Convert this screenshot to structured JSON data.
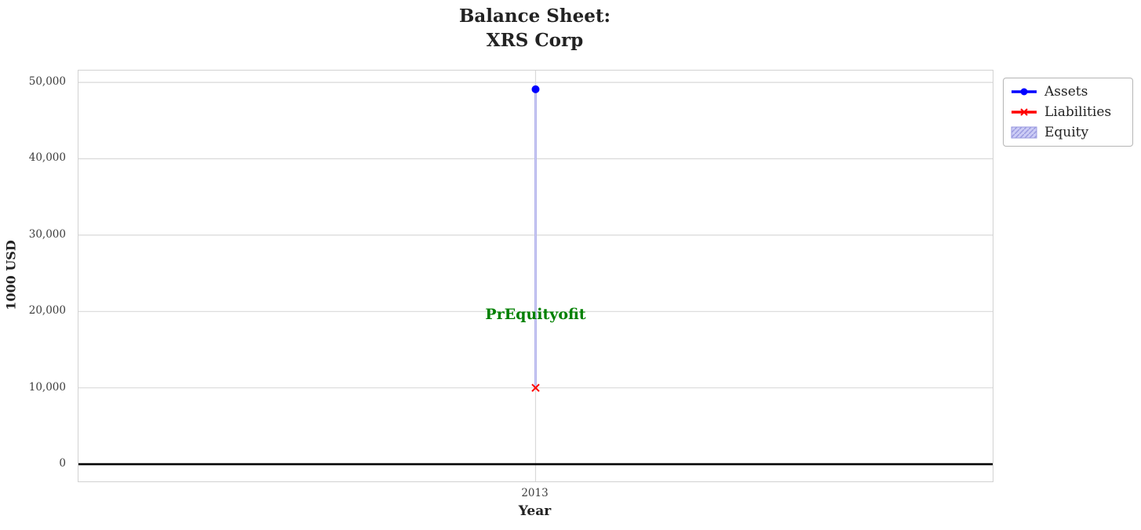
{
  "figure": {
    "title_line1": "Balance Sheet:",
    "title_line2": "XRS Corp",
    "xlabel": "Year",
    "ylabel": "1000 USD"
  },
  "legend": {
    "items": [
      {
        "label": "Assets"
      },
      {
        "label": "Liabilities"
      },
      {
        "label": "Equity"
      }
    ]
  },
  "chart_data": {
    "type": "line",
    "title": "Balance Sheet: XRS Corp",
    "xlabel": "Year",
    "ylabel": "1000 USD",
    "x": [
      2013
    ],
    "xtick_labels": [
      "2013"
    ],
    "yticks": [
      0,
      10000,
      20000,
      30000,
      40000,
      50000
    ],
    "ytick_labels": [
      "0",
      "10,000",
      "20,000",
      "30,000",
      "40,000",
      "50,000"
    ],
    "ylim": [
      -2250,
      51550
    ],
    "grid": true,
    "grid_color": "#d9d9d9",
    "legend_position": "outside-upper-right",
    "series": [
      {
        "name": "Assets",
        "type": "line",
        "marker": "circle",
        "color": "#0000ff",
        "values": [
          49100
        ]
      },
      {
        "name": "Liabilities",
        "type": "line",
        "marker": "x",
        "color": "#ff0000",
        "values": [
          10000
        ]
      },
      {
        "name": "Equity",
        "type": "bar",
        "hatch": "//",
        "fill": "#ccccf5",
        "edge": "#9a9ae0",
        "bottom": [
          10000
        ],
        "values": [
          39100
        ]
      }
    ],
    "zero_line": {
      "color": "#000000",
      "width": 2.6
    },
    "annotations": [
      {
        "text": "PrEquityofit",
        "x": 2013,
        "y": 19600,
        "color": "#008000",
        "font_size": 19
      }
    ]
  }
}
